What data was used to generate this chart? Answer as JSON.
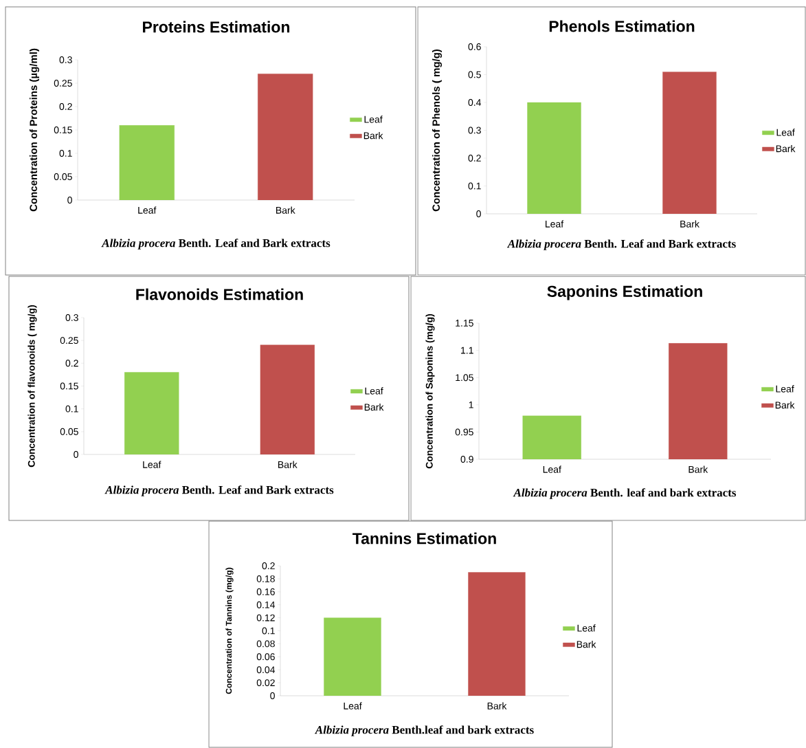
{
  "chart_data": [
    {
      "type": "bar",
      "title": "Proteins Estimation",
      "xlabel": "*Albizia procera* Benth. Leaf and Bark extracts",
      "ylabel": "Concentration of Proteins (µg/ml)",
      "categories": [
        "Leaf",
        "Bark"
      ],
      "series": [
        {
          "name": "Leaf",
          "color": "#92d050",
          "values": [
            0.16,
            null
          ]
        },
        {
          "name": "Bark",
          "color": "#c0504d",
          "values": [
            null,
            0.27
          ]
        }
      ],
      "ylim": [
        0,
        0.3
      ],
      "yticks": [
        0,
        0.05,
        0.1,
        0.15,
        0.2,
        0.25,
        0.3
      ],
      "legend": "right"
    },
    {
      "type": "bar",
      "title": "Phenols Estimation",
      "xlabel": "*Albizia procera* Benth. Leaf and Bark extracts",
      "ylabel": "Concentration of Phenols ( mg/g)",
      "categories": [
        "Leaf",
        "Bark"
      ],
      "series": [
        {
          "name": "Leaf",
          "color": "#92d050",
          "values": [
            0.4,
            null
          ]
        },
        {
          "name": "Bark",
          "color": "#c0504d",
          "values": [
            null,
            0.51
          ]
        }
      ],
      "ylim": [
        0,
        0.6
      ],
      "yticks": [
        0,
        0.1,
        0.2,
        0.3,
        0.4,
        0.5,
        0.6
      ],
      "legend": "right"
    },
    {
      "type": "bar",
      "title": "Flavonoids Estimation",
      "xlabel": "*Albizia procera* Benth. Leaf and Bark extracts",
      "ylabel": "Concentration of flavonoids ( mg/g)",
      "categories": [
        "Leaf",
        "Bark"
      ],
      "series": [
        {
          "name": "Leaf",
          "color": "#92d050",
          "values": [
            0.18,
            null
          ]
        },
        {
          "name": "Bark",
          "color": "#c0504d",
          "values": [
            null,
            0.24
          ]
        }
      ],
      "ylim": [
        0,
        0.3
      ],
      "yticks": [
        0,
        0.05,
        0.1,
        0.15,
        0.2,
        0.25,
        0.3
      ],
      "legend": "right"
    },
    {
      "type": "bar",
      "title": "Saponins Estimation",
      "xlabel": "*Albizia procera* Benth. leaf and bark extracts",
      "ylabel": "Concentration of Saponins (mg/g)",
      "categories": [
        "Leaf",
        "Bark"
      ],
      "series": [
        {
          "name": "Leaf",
          "color": "#92d050",
          "values": [
            0.98,
            null
          ]
        },
        {
          "name": "Bark",
          "color": "#c0504d",
          "values": [
            null,
            1.113
          ]
        }
      ],
      "ylim": [
        0.9,
        1.15
      ],
      "yticks": [
        0.9,
        0.95,
        1,
        1.05,
        1.1,
        1.15
      ],
      "legend": "right"
    },
    {
      "type": "bar",
      "title": "Tannins Estimation",
      "xlabel": "*Albizia procera* Benth.leaf and bark extracts",
      "ylabel": "Concentration of Tannins (mg/g)",
      "categories": [
        "Leaf",
        "Bark"
      ],
      "series": [
        {
          "name": "Leaf",
          "color": "#92d050",
          "values": [
            0.12,
            null
          ]
        },
        {
          "name": "Bark",
          "color": "#c0504d",
          "values": [
            null,
            0.19
          ]
        }
      ],
      "ylim": [
        0,
        0.2
      ],
      "yticks": [
        0,
        0.02,
        0.04,
        0.06,
        0.08,
        0.1,
        0.12,
        0.14,
        0.16,
        0.18,
        0.2
      ],
      "legend": "right"
    }
  ]
}
